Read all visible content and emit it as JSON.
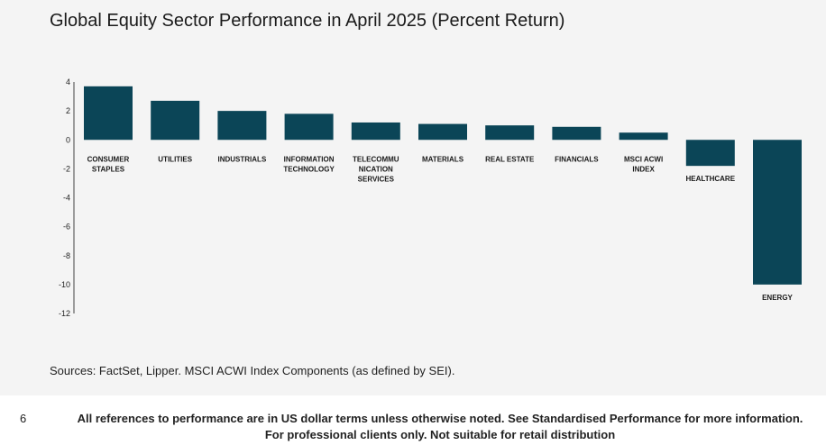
{
  "page": {
    "source": "Sources: FactSet, Lipper. MSCI ACWI Index Components (as defined by SEI).",
    "page_number": "6",
    "footnote_line1": "All references to performance are in US dollar terms unless otherwise noted. See Standardised Performance for more information.",
    "footnote_line2": "For professional clients only. Not suitable for retail distribution"
  },
  "chart_data": {
    "type": "bar",
    "title": "Global Equity Sector Performance in April 2025 (Percent Return)",
    "xlabel": "",
    "ylabel": "",
    "categories": [
      [
        "CONSUMER",
        "STAPLES"
      ],
      [
        "UTILITIES"
      ],
      [
        "INDUSTRIALS"
      ],
      [
        "INFORMATION",
        "TECHNOLOGY"
      ],
      [
        "TELECOMMU",
        "NICATION",
        "SERVICES"
      ],
      [
        "MATERIALS"
      ],
      [
        "REAL ESTATE"
      ],
      [
        "FINANCIALS"
      ],
      [
        "MSCI ACWI",
        "INDEX"
      ],
      [
        "HEALTHCARE"
      ],
      [
        "ENERGY"
      ]
    ],
    "values": [
      3.7,
      2.7,
      2.0,
      1.8,
      1.2,
      1.1,
      1.0,
      0.9,
      0.5,
      -1.8,
      -10.0
    ],
    "ylim": [
      -12,
      4
    ],
    "yticks": [
      4,
      2,
      0,
      -2,
      -4,
      -6,
      -8,
      -10,
      -12
    ],
    "bar_color": "#0b4557",
    "grid": false,
    "legend": "none"
  }
}
